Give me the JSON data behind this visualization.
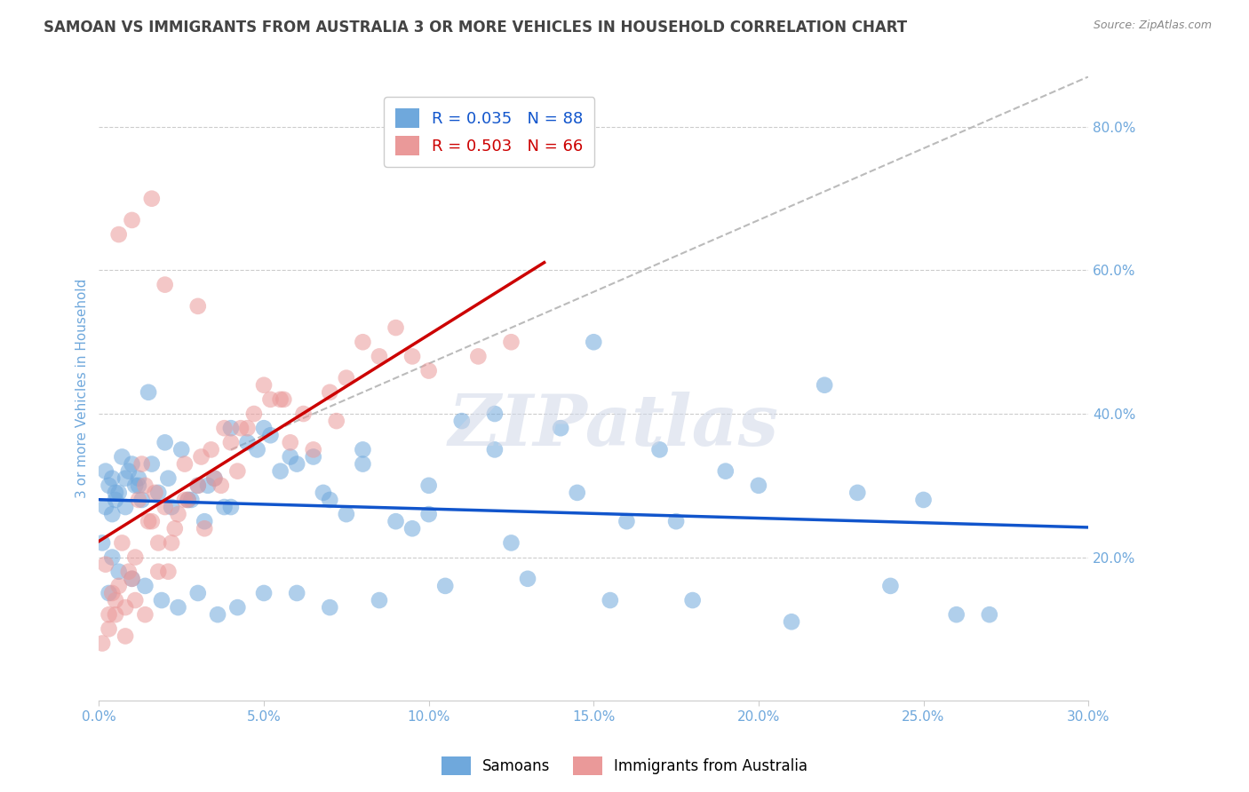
{
  "title": "SAMOAN VS IMMIGRANTS FROM AUSTRALIA 3 OR MORE VEHICLES IN HOUSEHOLD CORRELATION CHART",
  "source": "Source: ZipAtlas.com",
  "ylabel": "3 or more Vehicles in Household",
  "x_tick_labels": [
    "0.0%",
    "5.0%",
    "10.0%",
    "15.0%",
    "20.0%",
    "25.0%",
    "30.0%"
  ],
  "x_tick_values": [
    0.0,
    5.0,
    10.0,
    15.0,
    20.0,
    25.0,
    30.0
  ],
  "y_tick_labels_right": [
    "80.0%",
    "60.0%",
    "40.0%",
    "20.0%"
  ],
  "y_tick_values": [
    80.0,
    60.0,
    40.0,
    20.0
  ],
  "xlim": [
    0.0,
    30.0
  ],
  "ylim": [
    0.0,
    87.0
  ],
  "blue_color": "#6fa8dc",
  "pink_color": "#ea9999",
  "blue_line_color": "#1155cc",
  "pink_line_color": "#cc0000",
  "legend_R_blue": "R = 0.035",
  "legend_N_blue": "N = 88",
  "legend_R_pink": "R = 0.503",
  "legend_N_pink": "N = 66",
  "legend_label_blue": "Samoans",
  "legend_label_pink": "Immigrants from Australia",
  "watermark": "ZIPatlas",
  "samoans_x": [
    0.3,
    0.5,
    0.8,
    1.0,
    1.2,
    0.4,
    0.6,
    0.9,
    1.5,
    2.0,
    2.5,
    3.0,
    3.5,
    4.0,
    5.0,
    5.5,
    6.0,
    7.0,
    8.0,
    9.0,
    10.0,
    11.0,
    12.0,
    14.0,
    15.0,
    17.0,
    19.0,
    22.0,
    25.0,
    27.0,
    0.2,
    0.4,
    0.7,
    1.1,
    1.3,
    1.8,
    2.2,
    2.8,
    3.2,
    3.8,
    4.5,
    5.2,
    6.5,
    7.5,
    9.5,
    12.5,
    16.0,
    20.0,
    24.0,
    0.1,
    0.3,
    0.6,
    1.0,
    1.4,
    1.9,
    2.4,
    3.0,
    3.6,
    4.2,
    5.0,
    6.0,
    7.0,
    8.5,
    10.5,
    13.0,
    15.5,
    18.0,
    21.0,
    26.0,
    0.2,
    0.5,
    0.8,
    1.2,
    1.6,
    2.1,
    2.7,
    3.3,
    4.0,
    4.8,
    5.8,
    6.8,
    8.0,
    10.0,
    12.0,
    14.5,
    17.5,
    23.0,
    0.4
  ],
  "samoans_y": [
    30.0,
    28.0,
    27.0,
    33.0,
    31.0,
    26.0,
    29.0,
    32.0,
    43.0,
    36.0,
    35.0,
    30.0,
    31.0,
    38.0,
    38.0,
    32.0,
    33.0,
    28.0,
    33.0,
    25.0,
    26.0,
    39.0,
    40.0,
    38.0,
    50.0,
    35.0,
    32.0,
    44.0,
    28.0,
    12.0,
    27.0,
    31.0,
    34.0,
    30.0,
    28.0,
    29.0,
    27.0,
    28.0,
    25.0,
    27.0,
    36.0,
    37.0,
    34.0,
    26.0,
    24.0,
    22.0,
    25.0,
    30.0,
    16.0,
    22.0,
    15.0,
    18.0,
    17.0,
    16.0,
    14.0,
    13.0,
    15.0,
    12.0,
    13.0,
    15.0,
    15.0,
    13.0,
    14.0,
    16.0,
    17.0,
    14.0,
    14.0,
    11.0,
    12.0,
    32.0,
    29.0,
    31.0,
    30.0,
    33.0,
    31.0,
    28.0,
    30.0,
    27.0,
    35.0,
    34.0,
    29.0,
    35.0,
    30.0,
    35.0,
    29.0,
    25.0,
    29.0,
    20.0
  ],
  "australia_x": [
    0.2,
    0.4,
    0.5,
    0.7,
    0.9,
    1.1,
    1.3,
    1.5,
    1.7,
    2.0,
    2.3,
    2.6,
    3.0,
    3.4,
    3.8,
    4.2,
    4.7,
    5.2,
    5.8,
    6.5,
    7.2,
    8.0,
    9.0,
    10.0,
    11.5,
    0.3,
    0.6,
    0.8,
    1.0,
    1.2,
    1.4,
    1.6,
    1.8,
    2.1,
    2.4,
    2.7,
    3.1,
    3.5,
    4.0,
    4.5,
    5.0,
    5.6,
    6.2,
    7.0,
    8.5,
    0.1,
    0.3,
    0.5,
    0.8,
    1.1,
    1.4,
    1.8,
    2.2,
    2.6,
    3.2,
    3.7,
    4.3,
    5.5,
    7.5,
    9.5,
    12.5,
    0.6,
    1.0,
    1.6,
    2.0,
    3.0
  ],
  "australia_y": [
    19.0,
    15.0,
    14.0,
    22.0,
    18.0,
    20.0,
    33.0,
    25.0,
    29.0,
    27.0,
    24.0,
    33.0,
    30.0,
    35.0,
    38.0,
    32.0,
    40.0,
    42.0,
    36.0,
    35.0,
    39.0,
    50.0,
    52.0,
    46.0,
    48.0,
    12.0,
    16.0,
    13.0,
    17.0,
    28.0,
    30.0,
    25.0,
    22.0,
    18.0,
    26.0,
    28.0,
    34.0,
    31.0,
    36.0,
    38.0,
    44.0,
    42.0,
    40.0,
    43.0,
    48.0,
    8.0,
    10.0,
    12.0,
    9.0,
    14.0,
    12.0,
    18.0,
    22.0,
    28.0,
    24.0,
    30.0,
    38.0,
    42.0,
    45.0,
    48.0,
    50.0,
    65.0,
    67.0,
    70.0,
    58.0,
    55.0
  ],
  "background_color": "#ffffff",
  "grid_color": "#cccccc",
  "title_color": "#444444",
  "axis_label_color": "#6fa8dc",
  "tick_label_color": "#6fa8dc"
}
